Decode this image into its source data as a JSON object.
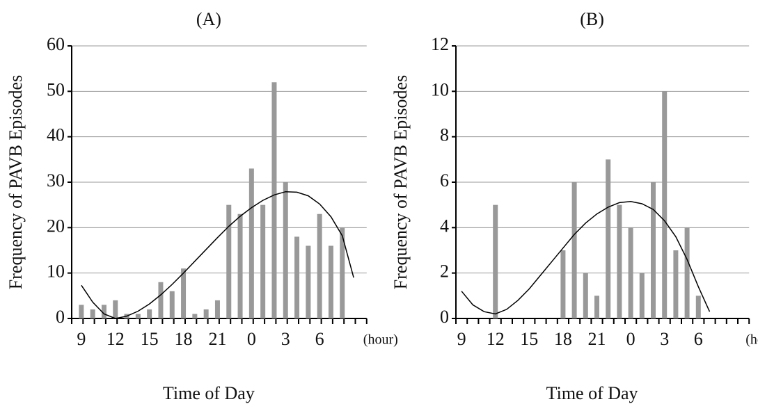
{
  "chart_data": [
    {
      "type": "bar",
      "title": "(A)",
      "x_label": "Time of Day",
      "x_unit": "(hour)",
      "y_label": "Frequency of PAVB Episodes",
      "categories": [
        "9",
        null,
        null,
        "12",
        null,
        null,
        "15",
        null,
        null,
        "18",
        null,
        null,
        "21",
        null,
        null,
        "0",
        null,
        null,
        "3",
        null,
        null,
        "6",
        null,
        null,
        null,
        null
      ],
      "values": [
        3,
        2,
        3,
        4,
        1,
        1,
        2,
        8,
        6,
        11,
        1,
        2,
        4,
        25,
        23,
        33,
        25,
        52,
        30,
        18,
        16,
        23,
        16,
        20,
        null,
        null
      ],
      "fit_values": [
        7.3,
        3.6,
        1,
        0,
        0.5,
        1.6,
        3.2,
        5.2,
        7.5,
        10,
        12.6,
        15.2,
        17.8,
        20.3,
        22.5,
        24.4,
        26,
        27.2,
        27.9,
        27.8,
        27,
        25.2,
        22.4,
        18.2,
        9,
        null
      ],
      "color": "#999999",
      "fit_color": "#000000",
      "ylim": [
        0,
        60
      ],
      "yticks": [
        0,
        10,
        20,
        30,
        40,
        50,
        60
      ],
      "grid": true
    },
    {
      "type": "bar",
      "title": "(B)",
      "x_label": "Time of Day",
      "x_unit": "(hour)",
      "y_label": "Frequency of PAVB Episodes",
      "categories": [
        "9",
        null,
        null,
        "12",
        null,
        null,
        "15",
        null,
        null,
        "18",
        null,
        null,
        "21",
        null,
        null,
        "0",
        null,
        null,
        "3",
        null,
        null,
        "6",
        null,
        null,
        null,
        null
      ],
      "values": [
        0,
        0,
        0,
        5,
        0,
        0,
        0,
        0,
        0,
        3,
        6,
        2,
        1,
        7,
        5,
        4,
        2,
        6,
        10,
        3,
        4,
        1,
        0,
        0,
        null,
        null
      ],
      "fit_values": [
        1.2,
        0.6,
        0.3,
        0.2,
        0.4,
        0.8,
        1.3,
        1.9,
        2.5,
        3.1,
        3.7,
        4.2,
        4.6,
        4.9,
        5.1,
        5.15,
        5.05,
        4.8,
        4.3,
        3.6,
        2.6,
        1.4,
        0.3,
        null,
        null,
        null
      ],
      "color": "#999999",
      "fit_color": "#000000",
      "ylim": [
        0,
        12
      ],
      "yticks": [
        0,
        2,
        4,
        6,
        8,
        10,
        12
      ],
      "grid": true
    }
  ]
}
